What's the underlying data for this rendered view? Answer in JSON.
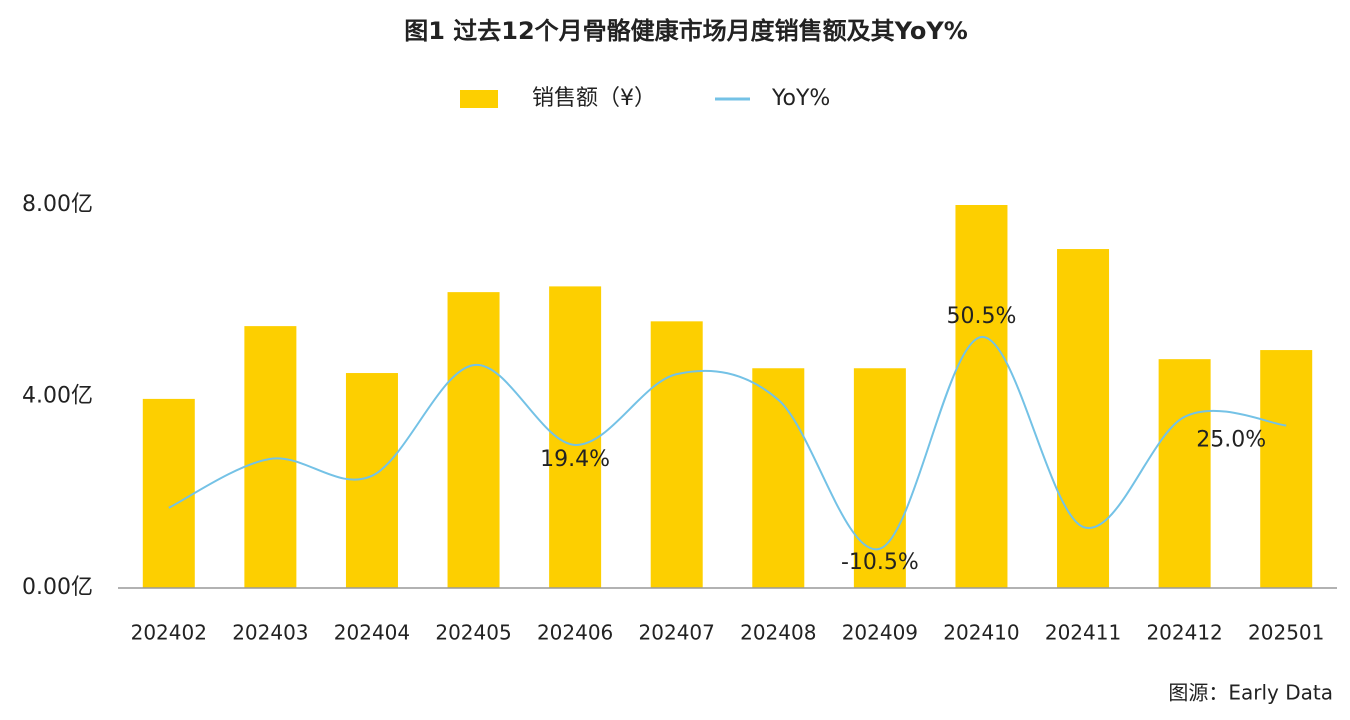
{
  "chart_data": {
    "type": "bar_line",
    "title": "图1 过去12个月骨骼健康市场月度销售额及其YoY%",
    "source": "图源：Early Data",
    "categories": [
      "202402",
      "202403",
      "202404",
      "202405",
      "202406",
      "202407",
      "202408",
      "202409",
      "202410",
      "202411",
      "202412",
      "202501"
    ],
    "series": [
      {
        "name": "销售额（¥）",
        "type": "bar",
        "color": "#fdcf00",
        "values": [
          3.95,
          5.47,
          4.49,
          6.18,
          6.3,
          5.57,
          4.59,
          4.59,
          8.0,
          7.08,
          4.78,
          4.97
        ]
      },
      {
        "name": "YoY%",
        "type": "line",
        "axis": "y2",
        "color": "#74c2e6",
        "values": [
          1.3,
          15.4,
          10.5,
          42.4,
          19.4,
          39.8,
          32.4,
          -10.5,
          50.5,
          -4.2,
          27.5,
          25.0
        ],
        "value_labels": [
          null,
          null,
          null,
          null,
          "19.4%",
          null,
          null,
          "-10.5%",
          "50.5%",
          null,
          null,
          "25.0%"
        ]
      }
    ],
    "ylim": [
      0,
      8
    ],
    "yticks": [
      {
        "value": 0,
        "label": "0.00亿"
      },
      {
        "value": 4,
        "label": "4.00亿"
      },
      {
        "value": 8,
        "label": "8.00亿"
      }
    ],
    "y2lim": [
      -21.8,
      88.5
    ]
  }
}
